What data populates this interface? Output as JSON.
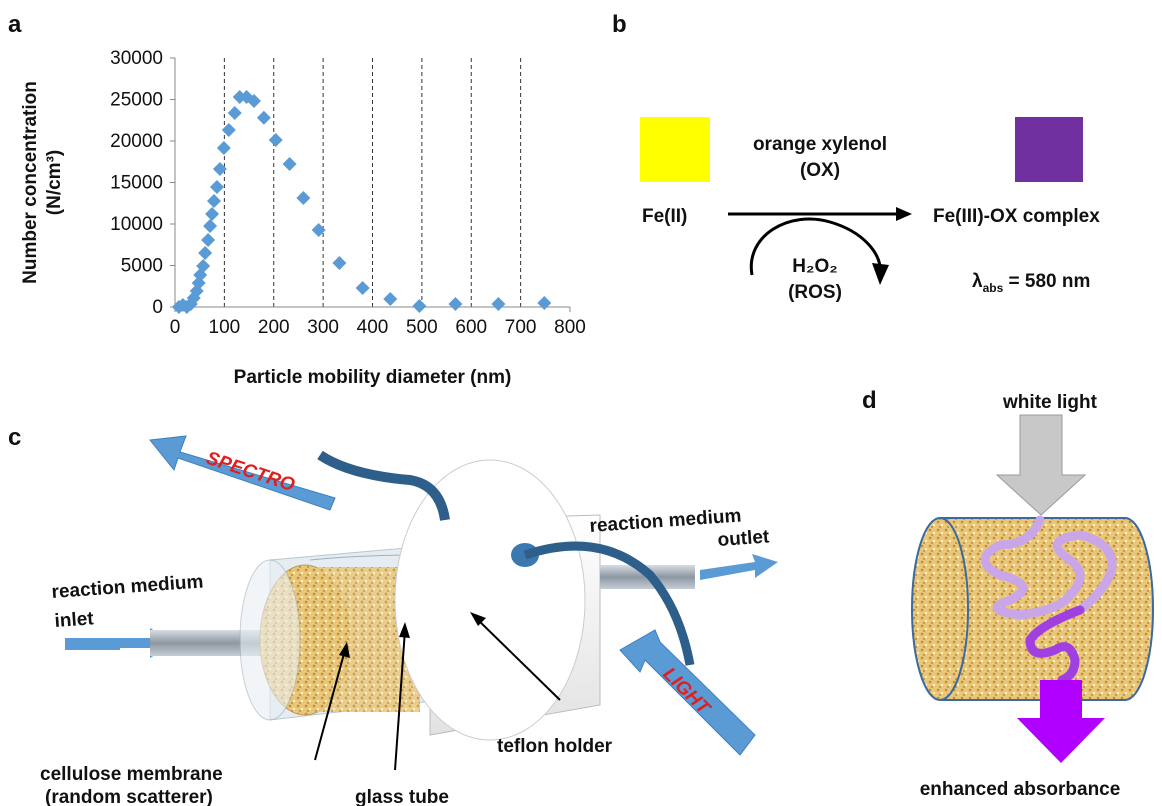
{
  "panel_labels": [
    "a",
    "b",
    "c",
    "d"
  ],
  "chart_data": {
    "type": "scatter",
    "xlabel": "Particle mobility diameter (nm)",
    "ylabel": [
      "Number concentration",
      "(N/cm³)"
    ],
    "x": [
      8,
      16,
      24,
      32,
      38,
      44,
      48,
      51,
      57,
      61,
      67,
      71,
      75,
      79,
      85,
      91,
      99,
      109,
      121,
      131,
      145,
      160,
      180,
      204,
      232,
      260,
      291,
      333,
      380,
      436,
      495,
      568,
      655,
      748
    ],
    "series": [
      {
        "color": "#5b9bd5",
        "values": [
          0,
          240,
          0,
          360,
          1080,
          1930,
          2890,
          3860,
          4940,
          6510,
          8070,
          9760,
          11200,
          12770,
          14460,
          16620,
          19160,
          21330,
          23370,
          25300,
          25300,
          24820,
          22800,
          20120,
          17230,
          13130,
          9280,
          5300,
          2290,
          970,
          120,
          360,
          360,
          480
        ]
      }
    ],
    "xlim": [
      0,
      800
    ],
    "xticks": [
      0,
      100,
      200,
      300,
      400,
      500,
      600,
      700,
      800
    ],
    "ylim": [
      0,
      30000
    ],
    "yticks": [
      0,
      5000,
      10000,
      15000,
      20000,
      25000,
      30000
    ],
    "grid": "x-dashed"
  },
  "reaction": {
    "reagent": [
      "orange xylenol",
      "(OX)"
    ],
    "reactant": "Fe(II)",
    "product": "Fe(III)-OX complex",
    "oxidant": "H₂O₂",
    "oxidant_note": "(ROS)",
    "absorbance": {
      "symbol": "λ",
      "subscript": "abs",
      "rest": " = 580 nm"
    },
    "reactant_color": "#ffff00",
    "product_color": "#7030a0"
  },
  "device": {
    "spectro": "SPECTRO",
    "light": "LIGHT",
    "outlet": [
      "reaction medium",
      "outlet"
    ],
    "inlet": [
      "reaction medium",
      "inlet"
    ],
    "holder": "teflon holder",
    "membrane": [
      "cellulose membrane",
      "(random scatterer)"
    ],
    "tube": "glass tube"
  },
  "scatter_diagram": {
    "top": "white light",
    "bottom": "enhanced absorbance"
  }
}
